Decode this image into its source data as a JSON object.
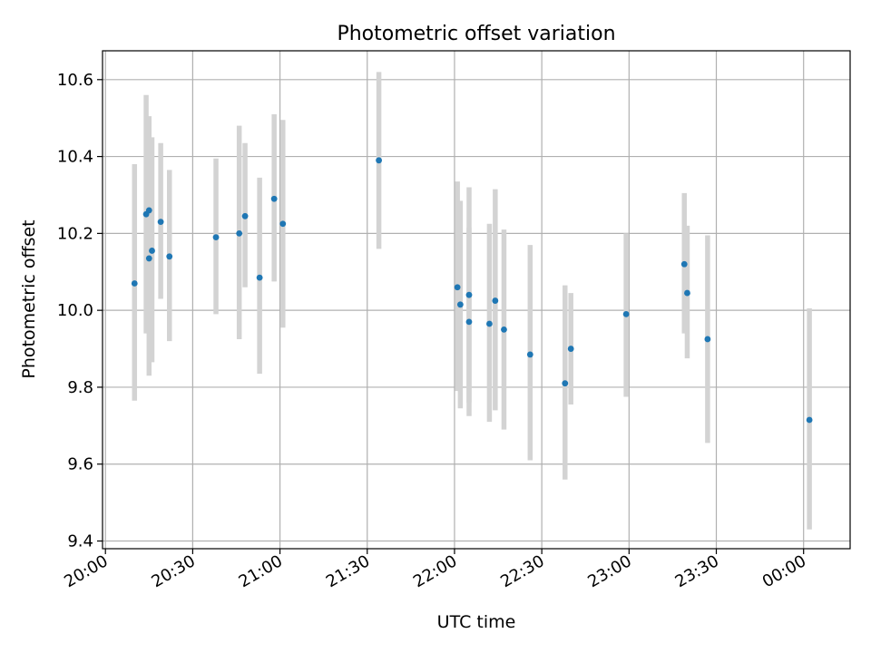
{
  "chart_data": {
    "type": "scatter",
    "title": "Photometric offset variation",
    "xlabel": "UTC time",
    "ylabel": "Photometric offset",
    "x_ticks": [
      "20:00",
      "20:30",
      "21:00",
      "21:30",
      "22:00",
      "22:30",
      "23:00",
      "23:30",
      "00:00"
    ],
    "y_ticks": [
      "9.4",
      "9.6",
      "9.8",
      "10.0",
      "10.2",
      "10.4",
      "10.6"
    ],
    "x_minutes_from_2000_range": [
      -1,
      256
    ],
    "ylim": [
      9.38,
      10.675
    ],
    "grid": true,
    "series": [
      {
        "marker_color": "#1f77b4",
        "errorbar_color": "#d3d3d3",
        "points": [
          {
            "t": "20:10",
            "y": 10.07,
            "lo": 9.765,
            "hi": 10.38
          },
          {
            "t": "20:14",
            "y": 10.25,
            "lo": 9.94,
            "hi": 10.56
          },
          {
            "t": "20:15",
            "y": 10.26,
            "lo": 9.95,
            "hi": 10.505
          },
          {
            "t": "20:15",
            "y": 10.135,
            "lo": 9.83,
            "hi": 10.45
          },
          {
            "t": "20:16",
            "y": 10.155,
            "lo": 9.865,
            "hi": 10.45
          },
          {
            "t": "20:19",
            "y": 10.23,
            "lo": 10.03,
            "hi": 10.435
          },
          {
            "t": "20:22",
            "y": 10.14,
            "lo": 9.92,
            "hi": 10.365
          },
          {
            "t": "20:38",
            "y": 10.19,
            "lo": 9.99,
            "hi": 10.395
          },
          {
            "t": "20:46",
            "y": 10.2,
            "lo": 9.925,
            "hi": 10.48
          },
          {
            "t": "20:48",
            "y": 10.245,
            "lo": 10.06,
            "hi": 10.435
          },
          {
            "t": "20:53",
            "y": 10.085,
            "lo": 9.835,
            "hi": 10.345
          },
          {
            "t": "20:58",
            "y": 10.29,
            "lo": 10.075,
            "hi": 10.51
          },
          {
            "t": "21:01",
            "y": 10.225,
            "lo": 9.955,
            "hi": 10.495
          },
          {
            "t": "21:34",
            "y": 10.39,
            "lo": 10.16,
            "hi": 10.62
          },
          {
            "t": "22:01",
            "y": 10.06,
            "lo": 9.79,
            "hi": 10.335
          },
          {
            "t": "22:02",
            "y": 10.015,
            "lo": 9.745,
            "hi": 10.285
          },
          {
            "t": "22:05",
            "y": 10.04,
            "lo": 9.76,
            "hi": 10.32
          },
          {
            "t": "22:05",
            "y": 9.97,
            "lo": 9.725,
            "hi": 10.215
          },
          {
            "t": "22:12",
            "y": 9.965,
            "lo": 9.71,
            "hi": 10.225
          },
          {
            "t": "22:14",
            "y": 10.025,
            "lo": 9.74,
            "hi": 10.315
          },
          {
            "t": "22:17",
            "y": 9.95,
            "lo": 9.69,
            "hi": 10.21
          },
          {
            "t": "22:26",
            "y": 9.885,
            "lo": 9.61,
            "hi": 10.17
          },
          {
            "t": "22:38",
            "y": 9.81,
            "lo": 9.56,
            "hi": 10.065
          },
          {
            "t": "22:40",
            "y": 9.9,
            "lo": 9.755,
            "hi": 10.045
          },
          {
            "t": "22:59",
            "y": 9.99,
            "lo": 9.775,
            "hi": 10.2
          },
          {
            "t": "23:19",
            "y": 10.12,
            "lo": 9.94,
            "hi": 10.305
          },
          {
            "t": "23:20",
            "y": 10.045,
            "lo": 9.875,
            "hi": 10.22
          },
          {
            "t": "23:27",
            "y": 9.925,
            "lo": 9.655,
            "hi": 10.195
          },
          {
            "t": "00:02",
            "y": 9.715,
            "lo": 9.43,
            "hi": 10.005
          }
        ]
      }
    ]
  }
}
